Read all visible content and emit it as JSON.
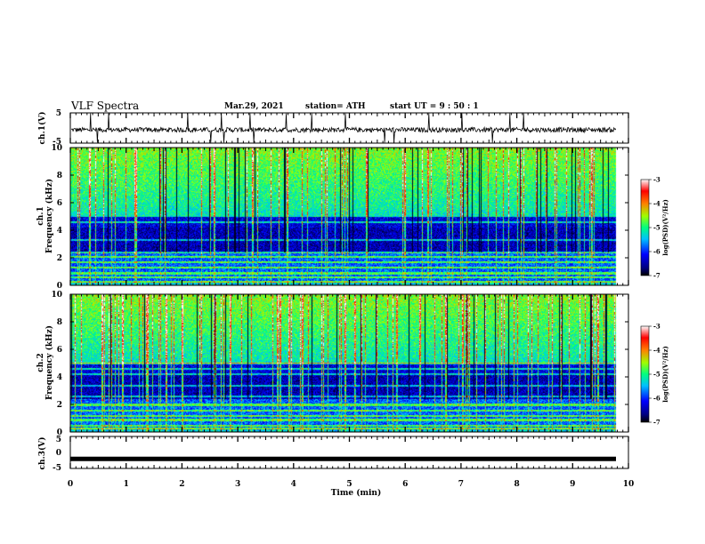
{
  "header": {
    "title": "VLF Spectra",
    "date": "Mar.29, 2021",
    "station": "station= ATH",
    "start": "start  UT =  9 : 50 : 1"
  },
  "chart_data": [
    {
      "type": "line",
      "panel": "ch1-waveform",
      "ylabel": "ch.1(V)",
      "ylim": [
        -5,
        5
      ],
      "yticks": [
        "5",
        "-5"
      ],
      "xlim": [
        0,
        10
      ],
      "series": [
        {
          "values_description_note": "",
          "baseline": -0.5,
          "amplitude": 1.2,
          "spikes": true
        }
      ]
    },
    {
      "type": "heatmap",
      "panel": "ch1-spectrogram",
      "ylabel_top": "ch.1",
      "ylabel": "Frequency  (kHz)",
      "ylim": [
        0,
        10
      ],
      "yticks": [
        "10",
        "8",
        "6",
        "4",
        "2",
        "0"
      ],
      "xlim": [
        0,
        10.0
      ],
      "colorbar": {
        "label": "log(PSD)(V²/Hz)",
        "range": [
          -7,
          -3
        ],
        "ticks": [
          "-3",
          "-4",
          "-5",
          "-6",
          "-7"
        ]
      }
    },
    {
      "type": "heatmap",
      "panel": "ch2-spectrogram",
      "ylabel_top": "ch.2",
      "ylabel": "Frequency  (kHz)",
      "ylim": [
        0,
        10
      ],
      "yticks": [
        "10",
        "8",
        "6",
        "4",
        "2",
        "0"
      ],
      "xlim": [
        0,
        10.0
      ],
      "colorbar": {
        "label": "log(PSD)(V²/Hz)",
        "range": [
          -7,
          -3
        ],
        "ticks": [
          "-3",
          "-4",
          "-5",
          "-6",
          "-7"
        ]
      }
    },
    {
      "type": "line",
      "panel": "ch3-waveform",
      "ylabel": "ch.3(V)",
      "ylim": [
        -5,
        5
      ],
      "yticks": [
        "5",
        "0",
        "-5"
      ],
      "xlim": [
        0,
        10
      ],
      "series": [
        {
          "constant": -2.0
        }
      ]
    }
  ],
  "xaxis": {
    "label": "Time  (min)",
    "ticks": [
      "0",
      "1",
      "2",
      "3",
      "4",
      "5",
      "6",
      "7",
      "8",
      "9",
      "10"
    ]
  },
  "colors": {
    "scale": [
      "#000080",
      "#0000ff",
      "#00a0ff",
      "#00ffff",
      "#00ff60",
      "#a0ff00",
      "#ffff00",
      "#ff8000",
      "#ff0000",
      "#ffffff"
    ]
  }
}
